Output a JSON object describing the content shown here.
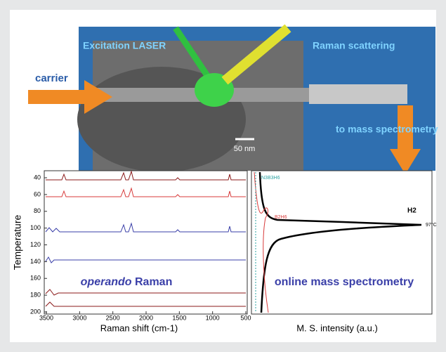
{
  "photo": {
    "laser_label": "Excitation LASER",
    "scattering_label": "Raman scattering",
    "carrier_label": "carrier",
    "scale_bar": "50 nm",
    "mass_spec_label": "to mass spectrometry"
  },
  "raman_plot": {
    "y_label": "Temperature",
    "y_ticks": [
      40,
      60,
      80,
      100,
      120,
      140,
      160,
      180,
      200
    ],
    "x_ticks": [
      3500,
      3000,
      2500,
      2000,
      1500,
      1000,
      500
    ],
    "x_label": "Raman shift (cm-1)",
    "title_italic": "operando",
    "title_rest": "Raman"
  },
  "ms_plot": {
    "title": "online mass spectrometry",
    "x_label": "M. S. intensity (a.u.)",
    "h2_label": "H2",
    "peak_label": "97°C",
    "b2h6_label": "B2H6",
    "borazine_label": "N3B3H6"
  }
}
